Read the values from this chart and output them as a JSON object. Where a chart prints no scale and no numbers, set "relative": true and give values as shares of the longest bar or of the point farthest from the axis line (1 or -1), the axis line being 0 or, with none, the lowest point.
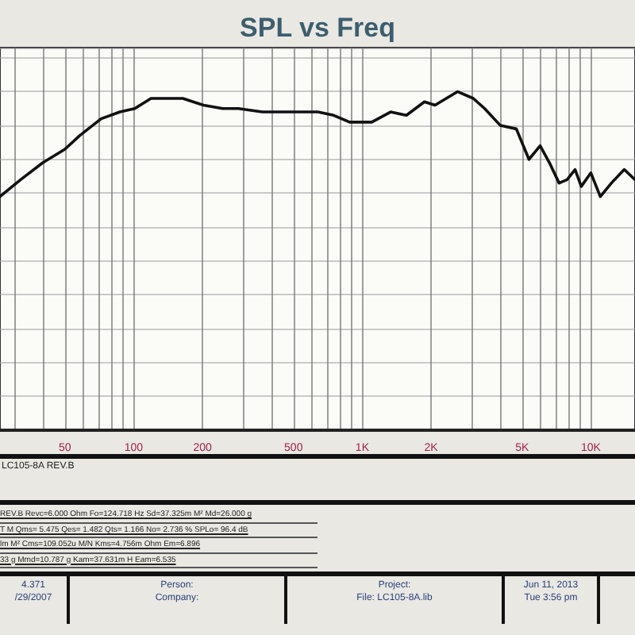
{
  "chart_data": {
    "type": "line",
    "title": "SPL vs Freq",
    "relative": true,
    "log": "x",
    "grid": true,
    "marker": "none",
    "line_style": "solid",
    "xlim": [
      26,
      15600
    ],
    "xticks": [
      {
        "value": 30,
        "label": null
      },
      {
        "value": 40,
        "label": null
      },
      50,
      {
        "value": 60,
        "label": null
      },
      {
        "value": 70,
        "label": null
      },
      {
        "value": 80,
        "label": null
      },
      {
        "value": 90,
        "label": null
      },
      100,
      200,
      {
        "value": 300,
        "label": null
      },
      {
        "value": 400,
        "label": null
      },
      500,
      {
        "value": 600,
        "label": null
      },
      {
        "value": 700,
        "label": null
      },
      {
        "value": 800,
        "label": null
      },
      {
        "value": 900,
        "label": null
      },
      {
        "value": 1000,
        "label": "1K"
      },
      {
        "value": 2000,
        "label": "2K"
      },
      {
        "value": 3000,
        "label": null
      },
      {
        "value": 4000,
        "label": null
      },
      {
        "value": 5000,
        "label": "5K"
      },
      {
        "value": 6000,
        "label": null
      },
      {
        "value": 7000,
        "label": null
      },
      {
        "value": 8000,
        "label": null
      },
      {
        "value": 9000,
        "label": null
      },
      {
        "value": 10000,
        "label": "10K"
      }
    ],
    "series": [
      {
        "color": "#111111",
        "x": [
          26,
          32,
          40,
          50,
          58,
          72,
          87,
          101,
          119,
          140,
          164,
          202,
          245,
          287,
          365,
          500,
          640,
          750,
          880,
          970,
          1100,
          1330,
          1560,
          1870,
          2080,
          2610,
          3060,
          3430,
          4020,
          4720,
          5360,
          6000,
          6590,
          7260,
          7870,
          8530,
          9080,
          10000,
          11000,
          12300,
          14000,
          15600
        ],
        "values": [
          0.69,
          0.74,
          0.79,
          0.83,
          0.87,
          0.92,
          0.94,
          0.95,
          0.98,
          0.98,
          0.98,
          0.96,
          0.95,
          0.95,
          0.94,
          0.94,
          0.94,
          0.93,
          0.91,
          0.91,
          0.91,
          0.94,
          0.93,
          0.97,
          0.96,
          1,
          0.98,
          0.95,
          0.9,
          0.89,
          0.8,
          0.84,
          0.79,
          0.73,
          0.74,
          0.77,
          0.72,
          0.76,
          0.69,
          0.73,
          0.77,
          0.74
        ]
      }
    ],
    "annotations": [
      "LC105-8A REV.B",
      "REV.B  Revc=6.000 Ohm  Fo=124.718 Hz  Sd=37.325m M²  Md=26.000 g",
      "T M  Qms= 5.475  Qes= 1.482  Qts= 1.166  No= 2.736 %  SPLo= 96.4 dB",
      "lm M²  Cms=109.052u M/N  Kms=4.756m Ohm  Em=6.896",
      "33 g  Mmd=10.787 g  Kam=37.631m H  Eam=6.535",
      "4.371",
      "/29/2007",
      "Person:",
      "Company:",
      "Project:",
      "File: LC105-8A.lib",
      "Jun 11, 2013",
      "Tue  3:56 pm"
    ]
  }
}
